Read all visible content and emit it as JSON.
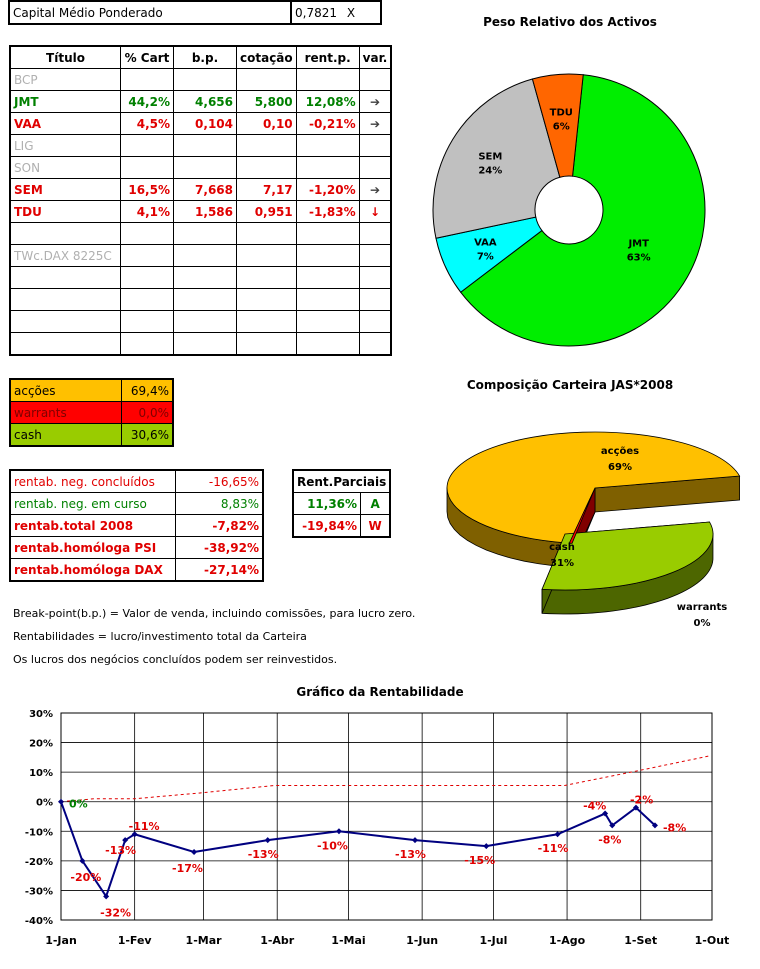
{
  "capital": {
    "label": "Capital Médio Ponderado",
    "value": "0,7821",
    "x": "X"
  },
  "holdings": {
    "headers": [
      "Título",
      "% Cart",
      "b.p.",
      "cotação",
      "rent.p.",
      "var."
    ],
    "rows": [
      {
        "name": "BCP",
        "cart": "",
        "bp": "",
        "cot": "",
        "rent": "",
        "var": "",
        "style": "gray"
      },
      {
        "name": "JMT",
        "cart": "44,2%",
        "bp": "4,656",
        "cot": "5,800",
        "rent": "12,08%",
        "var": "➔",
        "style": "green"
      },
      {
        "name": "VAA",
        "cart": "4,5%",
        "bp": "0,104",
        "cot": "0,10",
        "rent": "-0,21%",
        "var": "➔",
        "style": "red"
      },
      {
        "name": "LIG",
        "cart": "",
        "bp": "",
        "cot": "",
        "rent": "",
        "var": "",
        "style": "gray"
      },
      {
        "name": "SON",
        "cart": "",
        "bp": "",
        "cot": "",
        "rent": "",
        "var": "",
        "style": "gray"
      },
      {
        "name": "SEM",
        "cart": "16,5%",
        "bp": "7,668",
        "cot": "7,17",
        "rent": "-1,20%",
        "var": "➔",
        "style": "red"
      },
      {
        "name": "TDU",
        "cart": "4,1%",
        "bp": "1,586",
        "cot": "0,951",
        "rent": "-1,83%",
        "var": "↓",
        "style": "red"
      },
      {
        "name": "",
        "cart": "",
        "bp": "",
        "cot": "",
        "rent": "",
        "var": "",
        "style": "gray"
      },
      {
        "name": "TWc.DAX 8225C",
        "cart": "",
        "bp": "",
        "cot": "",
        "rent": "",
        "var": "",
        "style": "gray"
      },
      {
        "name": "",
        "cart": "",
        "bp": "",
        "cot": "",
        "rent": "",
        "var": "",
        "style": "gray"
      },
      {
        "name": "",
        "cart": "",
        "bp": "",
        "cot": "",
        "rent": "",
        "var": "",
        "style": "gray"
      },
      {
        "name": "",
        "cart": "",
        "bp": "",
        "cot": "",
        "rent": "",
        "var": "",
        "style": "gray"
      },
      {
        "name": "",
        "cart": "",
        "bp": "",
        "cot": "",
        "rent": "",
        "var": "",
        "style": "gray"
      }
    ]
  },
  "allocation": [
    {
      "label": "acções",
      "value": "69,4%",
      "color": "#ffc000",
      "text": "#000000"
    },
    {
      "label": "warrants",
      "value": "0,0%",
      "color": "#ff0000",
      "text": "#800000"
    },
    {
      "label": "cash",
      "value": "30,6%",
      "color": "#99cc00",
      "text": "#000000"
    }
  ],
  "returns": [
    {
      "label": "rentab. neg. concluídos",
      "value": "-16,65%",
      "style": "rn"
    },
    {
      "label": "rentab. neg. em curso",
      "value": "8,83%",
      "style": "gn"
    },
    {
      "label": "rentab.total 2008",
      "value": "-7,82%",
      "style": "rb"
    },
    {
      "label": "rentab.homóloga PSI",
      "value": "-38,92%",
      "style": "rb"
    },
    {
      "label": "rentab.homóloga DAX",
      "value": "-27,14%",
      "style": "rb"
    }
  ],
  "partials": {
    "header": "Rent.Parciais",
    "rows": [
      {
        "value": "11,36%",
        "tag": "A",
        "style": "green"
      },
      {
        "value": "-19,84%",
        "tag": "W",
        "style": "red"
      }
    ]
  },
  "notes": [
    "Break-point(b.p.) = Valor de venda, incluindo comissões, para lucro zero.",
    "Rentabilidades = lucro/investimento total da Carteira",
    "Os lucros dos negócios concluídos podem ser reinvestidos."
  ],
  "colors": {
    "jmt": "#00ee00",
    "vaa": "#00ffff",
    "sem": "#c0c0c0",
    "tdu": "#ff6600",
    "navy": "#000080",
    "red": "#e00000"
  },
  "chart_data": [
    {
      "type": "pie",
      "title": "Peso Relativo dos Activos",
      "labels": [
        "JMT",
        "VAA",
        "SEM",
        "TDU"
      ],
      "display": [
        "63%",
        "7%",
        "24%",
        "6%"
      ],
      "values": [
        63,
        7,
        24,
        6
      ]
    },
    {
      "type": "pie",
      "title": "Composição Carteira JAS*2008",
      "labels": [
        "acções",
        "cash",
        "warrants"
      ],
      "display": [
        "69%",
        "31%",
        "0%"
      ],
      "values": [
        69,
        31,
        0.3
      ]
    },
    {
      "type": "line",
      "title": "Gráfico da Rentabilidade",
      "x_ticks": [
        "1-Jan",
        "1-Fev",
        "1-Mar",
        "1-Abr",
        "1-Mai",
        "1-Jun",
        "1-Jul",
        "1-Ago",
        "1-Set",
        "1-Out"
      ],
      "y_ticks": [
        "30%",
        "20%",
        "10%",
        "0%",
        "-10%",
        "-20%",
        "-30%",
        "-40%"
      ],
      "ylim": [
        -40,
        30
      ],
      "series": [
        {
          "style": "solid",
          "x": [
            1,
            10,
            20,
            28,
            32,
            57,
            88,
            118,
            150,
            180,
            210,
            230,
            233,
            243,
            251
          ],
          "y": [
            0,
            -20,
            -32,
            -13,
            -11,
            -17,
            -13,
            -10,
            -13,
            -15,
            -11,
            -4,
            -8,
            -2,
            -8
          ],
          "labels": [
            "0%",
            "-20%",
            "-32%",
            "-13%",
            "-11%",
            "-17%",
            "-13%",
            "-10%",
            "-13%",
            "-15%",
            "-11%",
            "-4%",
            "-8%",
            "-2%",
            "-8%"
          ]
        },
        {
          "style": "dashed",
          "x": [
            1,
            15,
            32,
            60,
            91,
            121,
            152,
            182,
            213,
            244,
            274
          ],
          "y": [
            0,
            1,
            1,
            3,
            5.5,
            5.5,
            5.5,
            5.5,
            5.5,
            10.5,
            15.5
          ]
        }
      ]
    }
  ]
}
